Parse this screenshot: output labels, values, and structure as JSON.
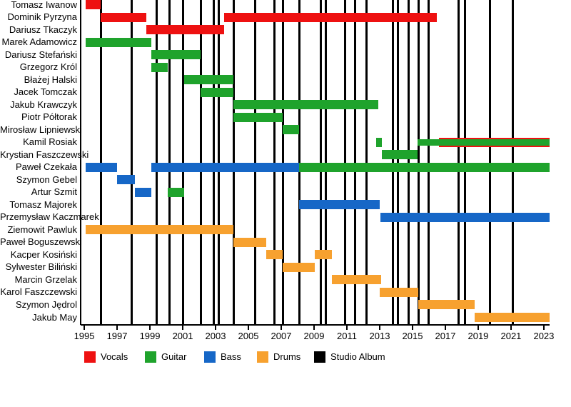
{
  "chart_data": {
    "type": "gantt",
    "title": "",
    "xlabel": "",
    "ylabel": "",
    "grid": "vertical-event-lines-only",
    "xlim": [
      1994.78,
      2023.35
    ],
    "x_ticks": [
      1995,
      1997,
      1999,
      2001,
      2003,
      2005,
      2007,
      2009,
      2011,
      2013,
      2015,
      2017,
      2019,
      2021,
      2023
    ],
    "roles": {
      "vocals": {
        "label": "Vocals",
        "color": "#ee1111"
      },
      "guitar": {
        "label": "Guitar",
        "color": "#1fa32c"
      },
      "bass": {
        "label": "Bass",
        "color": "#1667c7"
      },
      "drums": {
        "label": "Drums",
        "color": "#f7a12f"
      }
    },
    "album_marker": {
      "label": "Studio Album",
      "color": "#000000"
    },
    "members": [
      {
        "name": "Tomasz Iwanow",
        "bars": [
          {
            "role": "vocals",
            "start": 1995.1,
            "end": 1996.0
          }
        ]
      },
      {
        "name": "Dominik Pyrzyna",
        "bars": [
          {
            "role": "vocals",
            "start": 1996.0,
            "end": 1998.8
          },
          {
            "role": "vocals",
            "start": 2003.5,
            "end": 2016.5
          }
        ]
      },
      {
        "name": "Dariusz Tkaczyk",
        "bars": [
          {
            "role": "vocals",
            "start": 1998.8,
            "end": 2003.5
          }
        ]
      },
      {
        "name": "Marek Adamowicz",
        "bars": [
          {
            "role": "guitar",
            "start": 1995.1,
            "end": 1999.1
          }
        ]
      },
      {
        "name": "Dariusz Stefański",
        "bars": [
          {
            "role": "guitar",
            "start": 1999.1,
            "end": 2002.1
          }
        ]
      },
      {
        "name": "Grzegorz Król",
        "bars": [
          {
            "role": "guitar",
            "start": 1999.1,
            "end": 2000.1
          }
        ]
      },
      {
        "name": "Błażej Halski",
        "bars": [
          {
            "role": "guitar",
            "start": 2001.1,
            "end": 2004.1
          }
        ]
      },
      {
        "name": "Jacek Tomczak",
        "bars": [
          {
            "role": "guitar",
            "start": 2002.1,
            "end": 2004.1
          }
        ]
      },
      {
        "name": "Jakub Krawczyk",
        "bars": [
          {
            "role": "guitar",
            "start": 2004.1,
            "end": 2012.9
          }
        ]
      },
      {
        "name": "Piotr Półtorak",
        "bars": [
          {
            "role": "guitar",
            "start": 2004.1,
            "end": 2007.1
          }
        ]
      },
      {
        "name": "Mirosław Lipniewski",
        "bars": [
          {
            "role": "guitar",
            "start": 2007.1,
            "end": 2008.1
          }
        ]
      },
      {
        "name": "Kamil Rosiak",
        "bars": [
          {
            "role": "guitar",
            "start": 2012.8,
            "end": 2013.15
          },
          {
            "role": "vocals",
            "start": 2016.6,
            "end": 2023.35
          },
          {
            "role": "guitar",
            "start": 2015.3,
            "end": 2023.35,
            "height": 9
          }
        ]
      },
      {
        "name": "Krystian Faszczewski",
        "bars": [
          {
            "role": "guitar",
            "start": 2013.15,
            "end": 2015.3
          }
        ]
      },
      {
        "name": "Paweł Czekała",
        "bars": [
          {
            "role": "bass",
            "start": 1995.1,
            "end": 1997.0
          },
          {
            "role": "bass",
            "start": 1999.1,
            "end": 2008.1
          },
          {
            "role": "guitar",
            "start": 2008.1,
            "end": 2023.35
          }
        ]
      },
      {
        "name": "Szymon Gebel",
        "bars": [
          {
            "role": "bass",
            "start": 1997.0,
            "end": 1998.1
          }
        ]
      },
      {
        "name": "Artur Szmit",
        "bars": [
          {
            "role": "bass",
            "start": 1998.1,
            "end": 1999.1
          },
          {
            "role": "guitar",
            "start": 2000.1,
            "end": 2001.1
          }
        ]
      },
      {
        "name": "Tomasz Majorek",
        "bars": [
          {
            "role": "bass",
            "start": 2008.1,
            "end": 2013.0
          }
        ]
      },
      {
        "name": "Przemysław Kaczmarek",
        "bars": [
          {
            "role": "bass",
            "start": 2013.05,
            "end": 2023.35
          }
        ]
      },
      {
        "name": "Ziemowit Pawluk",
        "bars": [
          {
            "role": "drums",
            "start": 1995.1,
            "end": 2004.1
          }
        ]
      },
      {
        "name": "Paweł Boguszewski",
        "bars": [
          {
            "role": "drums",
            "start": 2004.1,
            "end": 2006.1
          }
        ]
      },
      {
        "name": "Kacper Kosiński",
        "bars": [
          {
            "role": "drums",
            "start": 2006.1,
            "end": 2007.1
          },
          {
            "role": "drums",
            "start": 2009.05,
            "end": 2010.1
          }
        ]
      },
      {
        "name": "Sylwester Biliński",
        "bars": [
          {
            "role": "drums",
            "start": 2007.1,
            "end": 2009.05
          }
        ]
      },
      {
        "name": "Marcin Grzelak",
        "bars": [
          {
            "role": "drums",
            "start": 2010.1,
            "end": 2013.1
          }
        ]
      },
      {
        "name": "Karol Faszczewski",
        "bars": [
          {
            "role": "drums",
            "start": 2013.0,
            "end": 2015.35
          }
        ]
      },
      {
        "name": "Szymon Jędrol",
        "bars": [
          {
            "role": "drums",
            "start": 2015.35,
            "end": 2018.8
          }
        ]
      },
      {
        "name": "Jakub May",
        "bars": [
          {
            "role": "drums",
            "start": 2018.8,
            "end": 2023.35
          }
        ]
      }
    ],
    "studio_albums": [
      1996.0,
      1997.9,
      1999.4,
      2000.2,
      2001.0,
      2002.1,
      2002.9,
      2003.2,
      2004.1,
      2005.4,
      2006.6,
      2007.1,
      2008.1,
      2009.4,
      2009.7,
      2010.9,
      2011.5,
      2012.2,
      2013.8,
      2014.1,
      2014.75,
      2015.35,
      2016.0,
      2017.8,
      2018.2,
      2019.7,
      2021.1
    ],
    "legend": [
      {
        "label": "Vocals",
        "color": "#ee1111"
      },
      {
        "label": "Guitar",
        "color": "#1fa32c"
      },
      {
        "label": "Bass",
        "color": "#1667c7"
      },
      {
        "label": "Drums",
        "color": "#f7a12f"
      },
      {
        "label": "Studio Album",
        "color": "#000000"
      }
    ]
  }
}
